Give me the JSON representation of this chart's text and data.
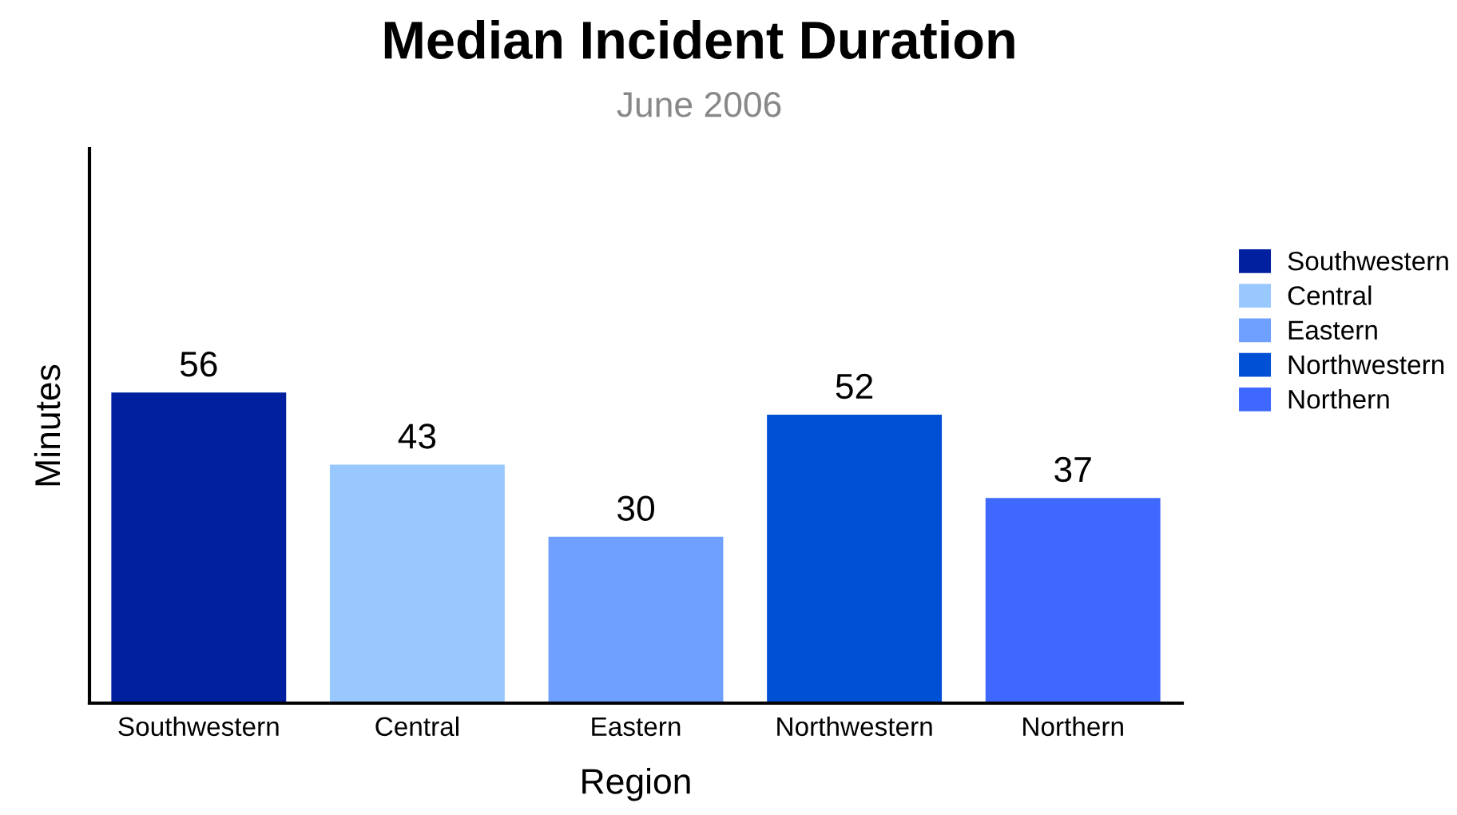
{
  "chart_data": {
    "type": "bar",
    "title": "Median Incident Duration",
    "subtitle": "June 2006",
    "xlabel": "Region",
    "ylabel": "Minutes",
    "categories": [
      "Southwestern",
      "Central",
      "Eastern",
      "Northwestern",
      "Northern"
    ],
    "series": [
      {
        "name": "Southwestern",
        "color": "#0020a0",
        "values": [
          56,
          null,
          null,
          null,
          null
        ]
      },
      {
        "name": "Central",
        "color": "#99c8ff",
        "values": [
          null,
          43,
          null,
          null,
          null
        ]
      },
      {
        "name": "Eastern",
        "color": "#6fa0ff",
        "values": [
          null,
          null,
          30,
          null,
          null
        ]
      },
      {
        "name": "Northwestern",
        "color": "#0050d6",
        "values": [
          null,
          null,
          null,
          52,
          null
        ]
      },
      {
        "name": "Northern",
        "color": "#3f68ff",
        "values": [
          null,
          null,
          null,
          null,
          37
        ]
      }
    ],
    "ylim": [
      0,
      100
    ],
    "data_labels": true,
    "legend": "right",
    "grid": false
  }
}
